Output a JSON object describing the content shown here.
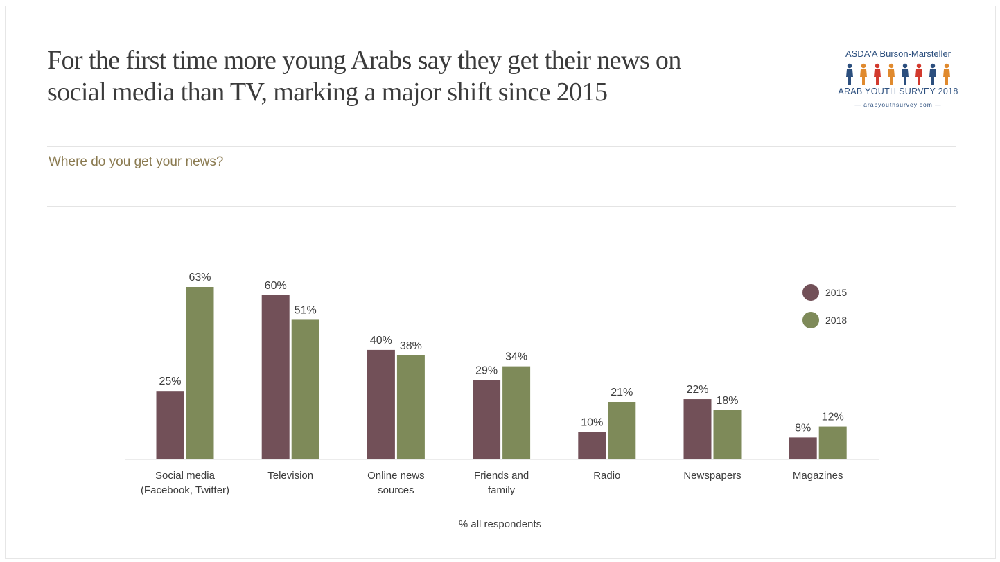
{
  "slide": {
    "title_line1": "For the first time more young Arabs say they get their news on",
    "title_line2": "social media than TV, marking a major shift since 2015",
    "question": "Where do you get your news?",
    "footnote": "% all respondents"
  },
  "logo": {
    "brand": "ASDA'A Burson-Marsteller",
    "survey": "ARAB YOUTH SURVEY 2018",
    "url": "— arabyouthsurvey.com —",
    "figure_colors": [
      "#2c4f7e",
      "#e08a2e",
      "#d23a2e",
      "#e08a2e",
      "#2c4f7e",
      "#d23a2e",
      "#2c4f7e",
      "#e08a2e"
    ]
  },
  "chart_data": {
    "type": "bar",
    "title": "Where do you get your news?",
    "categories": [
      [
        "Social media",
        "(Facebook, Twitter)"
      ],
      [
        "Television"
      ],
      [
        "Online news",
        "sources"
      ],
      [
        "Friends and",
        "family"
      ],
      [
        "Radio"
      ],
      [
        "Newspapers"
      ],
      [
        "Magazines"
      ]
    ],
    "series": [
      {
        "name": "2015",
        "color": "#725058",
        "values": [
          25,
          60,
          40,
          29,
          10,
          22,
          8
        ]
      },
      {
        "name": "2018",
        "color": "#7e8a59",
        "values": [
          63,
          51,
          38,
          34,
          21,
          18,
          12
        ]
      }
    ],
    "value_suffix": "%",
    "xlabel": "% all respondents",
    "ylabel": "",
    "ylim": [
      0,
      63
    ],
    "legend": "top-right",
    "grid": false
  }
}
